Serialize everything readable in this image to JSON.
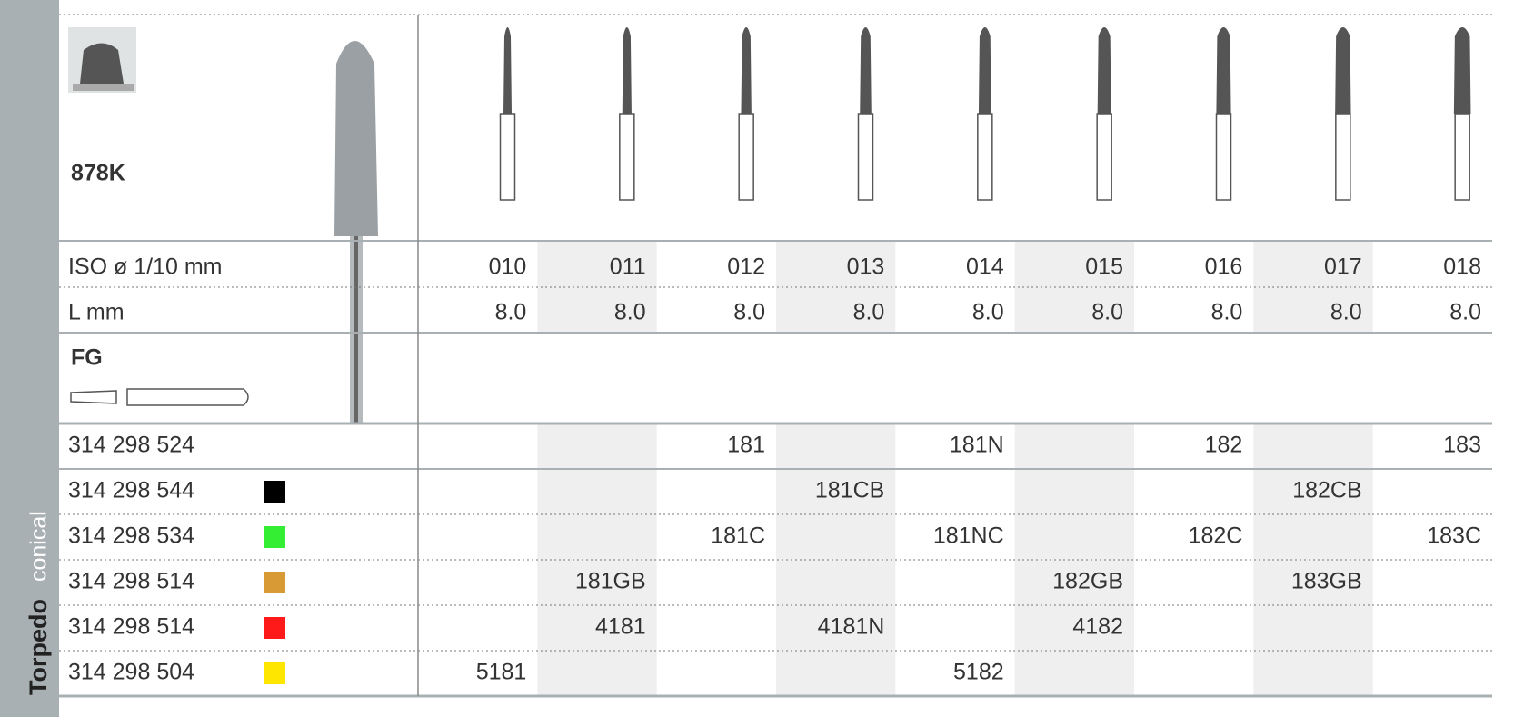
{
  "product": {
    "code": "878K",
    "shank": "FG",
    "category": "Torpedo",
    "subcategory": "conical"
  },
  "header": {
    "iso_label": "ISO ø 1/10 mm",
    "length_label": "L mm"
  },
  "columns": [
    {
      "iso": "010",
      "length": "8.0"
    },
    {
      "iso": "011",
      "length": "8.0"
    },
    {
      "iso": "012",
      "length": "8.0"
    },
    {
      "iso": "013",
      "length": "8.0"
    },
    {
      "iso": "014",
      "length": "8.0"
    },
    {
      "iso": "015",
      "length": "8.0"
    },
    {
      "iso": "016",
      "length": "8.0"
    },
    {
      "iso": "017",
      "length": "8.0"
    },
    {
      "iso": "018",
      "length": "8.0"
    }
  ],
  "rows": [
    {
      "ref": "314 298 524",
      "cells": [
        null,
        null,
        "181",
        null,
        "181N",
        null,
        "182",
        null,
        "183"
      ]
    },
    {
      "ref": "314 298 544",
      "color": "#000000",
      "cells": [
        null,
        null,
        null,
        "181CB",
        null,
        null,
        null,
        "182CB",
        null
      ]
    },
    {
      "ref": "314 298 534",
      "color": "#33ee33",
      "cells": [
        null,
        null,
        "181C",
        null,
        "181NC",
        null,
        "182C",
        null,
        "183C"
      ]
    },
    {
      "ref": "314 298 514",
      "color": "#d89a35",
      "cells": [
        null,
        "181GB",
        null,
        null,
        null,
        "182GB",
        null,
        "183GB",
        null
      ]
    },
    {
      "ref": "314 298 514",
      "color": "#ff1a1a",
      "cells": [
        null,
        "4181",
        null,
        "4181N",
        null,
        "4182",
        null,
        null,
        null
      ]
    },
    {
      "ref": "314 298 504",
      "color": "#ffe600",
      "cells": [
        "5181",
        null,
        null,
        null,
        "5182",
        null,
        null,
        null,
        null
      ]
    }
  ]
}
